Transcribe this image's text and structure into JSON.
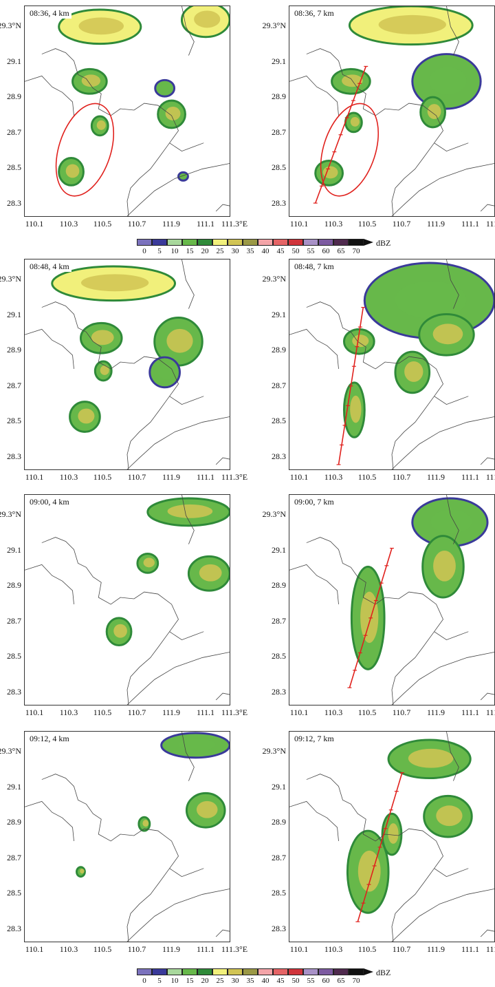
{
  "figure": {
    "y_ticks": [
      "29.3°N",
      "29.1",
      "28.9",
      "28.7",
      "28.5",
      "28.3"
    ],
    "x_ticks": [
      "110.1",
      "110.3",
      "110.5",
      "110.7",
      "111.9",
      "111.1",
      "111.3°E"
    ]
  },
  "colorbar": {
    "unit": "dBZ",
    "ticks": [
      "0",
      "5",
      "10",
      "15",
      "20",
      "25",
      "30",
      "35",
      "40",
      "45",
      "50",
      "55",
      "60",
      "65",
      "70"
    ],
    "colors": [
      "#7b72bd",
      "#3a3a9a",
      "#a8d89c",
      "#67b84a",
      "#2f8a39",
      "#f1f07b",
      "#d1c454",
      "#9a9845",
      "#f3a4a8",
      "#e56466",
      "#d0343b",
      "#a891c7",
      "#7c5aa0",
      "#4f2a4e",
      "#111111"
    ]
  },
  "panels": [
    {
      "id": "p1",
      "label": "08:36, 4 km",
      "circle": true,
      "line": null
    },
    {
      "id": "p2",
      "label": "08:36, 7 km",
      "circle": true,
      "line": "a"
    },
    {
      "id": "p3",
      "label": "08:48, 4 km",
      "circle": false,
      "line": null
    },
    {
      "id": "p4",
      "label": "08:48, 7 km",
      "circle": false,
      "line": "b"
    },
    {
      "id": "p5",
      "label": "09:00, 4 km",
      "circle": false,
      "line": null
    },
    {
      "id": "p6",
      "label": "09:00, 7 km",
      "circle": false,
      "line": "c"
    },
    {
      "id": "p7",
      "label": "09:12, 4 km",
      "circle": false,
      "line": null
    },
    {
      "id": "p8",
      "label": "09:12, 7 km",
      "circle": false,
      "line": "d"
    }
  ]
}
